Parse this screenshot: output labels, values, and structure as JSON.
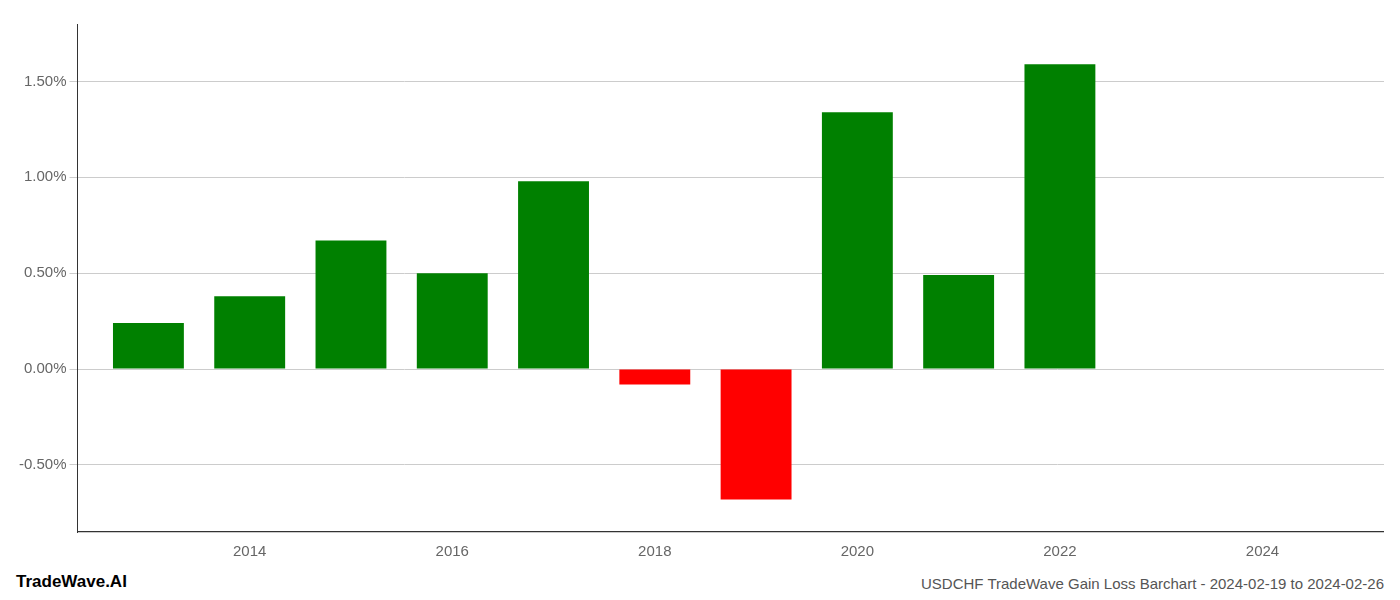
{
  "chart_data": {
    "type": "bar",
    "x": [
      2013,
      2014,
      2015,
      2016,
      2017,
      2018,
      2019,
      2020,
      2021,
      2022
    ],
    "values": [
      0.0024,
      0.0038,
      0.0067,
      0.005,
      0.0098,
      -0.0008,
      -0.0068,
      0.0134,
      0.0049,
      0.0159
    ],
    "colors": [
      "#008000",
      "#008000",
      "#008000",
      "#008000",
      "#008000",
      "#ff0000",
      "#ff0000",
      "#008000",
      "#008000",
      "#008000"
    ],
    "xlim": [
      2012.3,
      2025.2
    ],
    "xticks": [
      2014,
      2016,
      2018,
      2020,
      2022,
      2024
    ],
    "ylim": [
      -0.0085,
      0.018
    ],
    "yticks": [
      {
        "value": -0.005,
        "label": "-0.50%"
      },
      {
        "value": 0.0,
        "label": "0.00%"
      },
      {
        "value": 0.005,
        "label": "0.50%"
      },
      {
        "value": 0.01,
        "label": "1.00%"
      },
      {
        "value": 0.015,
        "label": "1.50%"
      }
    ],
    "grid": "y",
    "annotations": [
      "TradeWave.AI",
      "USDCHF TradeWave Gain Loss Barchart - 2024-02-19 to 2024-02-26"
    ]
  }
}
